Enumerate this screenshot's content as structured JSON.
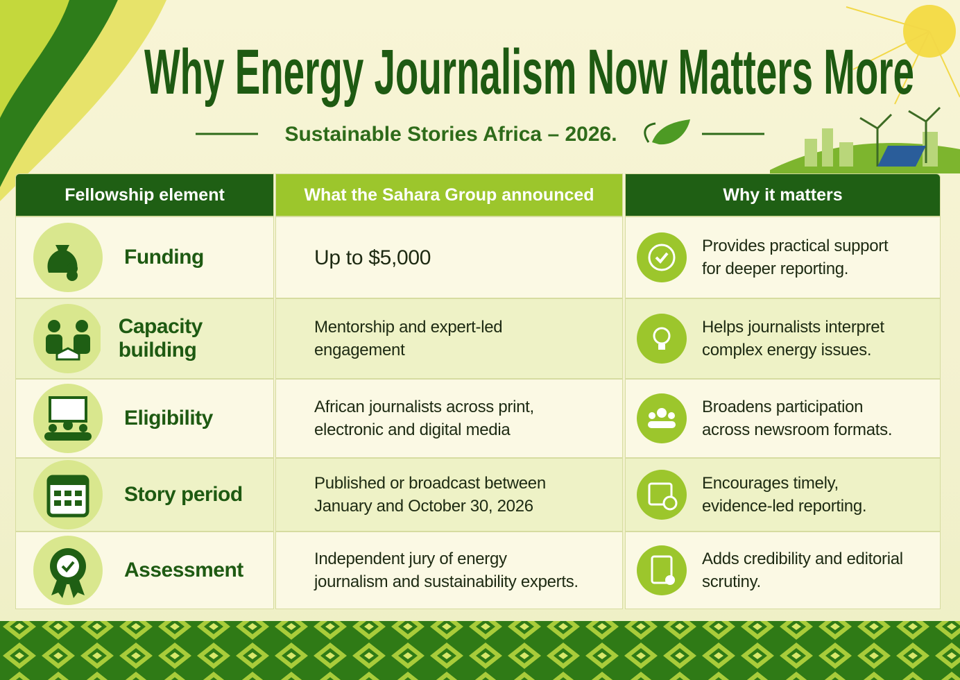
{
  "header": {
    "title": "Why Energy Journalism Now Matters More",
    "subtitle": "Sustainable Stories Africa – 2026."
  },
  "table": {
    "headers": [
      "Fellowship element",
      "What the Sahara Group announced",
      "Why it matters"
    ],
    "rows": [
      [
        "Funding",
        "Up to $5,000",
        "Provides practical support for deeper reporting."
      ],
      [
        "Capacity building",
        "Mentorship and expert-led engagement",
        "Helps journalists interpret complex energy issues."
      ],
      [
        "Eligibility",
        "African journalists across print, electronic and digital media",
        "Broadens participation across newsroom formats."
      ],
      [
        "Story period",
        "Published or broadcast between January and October 30, 2026",
        "Encourages timely, evidence-led reporting."
      ],
      [
        "Assessment",
        "Independent jury of energy journalism and sustainability experts.",
        "Adds credibility and editorial scrutiny."
      ]
    ]
  }
}
